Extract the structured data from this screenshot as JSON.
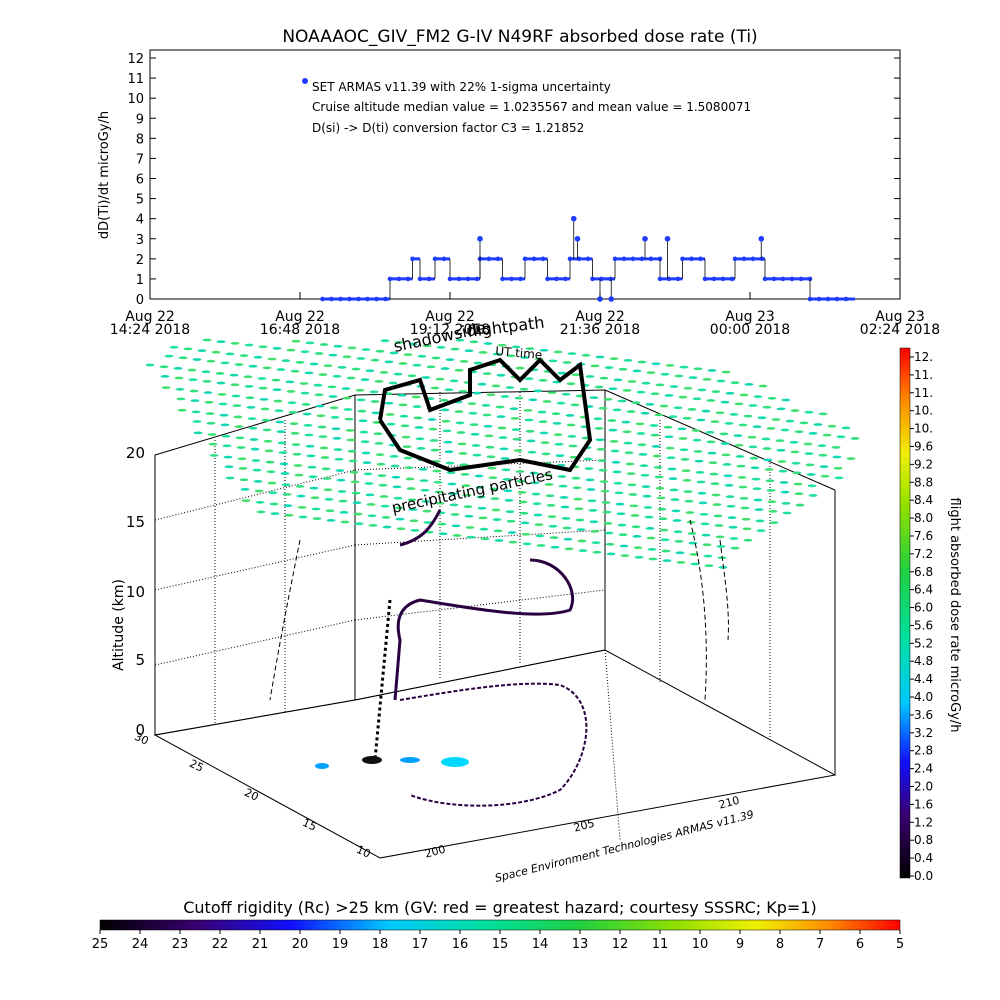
{
  "chart_data": [
    {
      "type": "line",
      "title": "NOAAAOC_GIV_FM2 G-IV    N49RF  absorbed dose rate (Ti)",
      "ylabel": "dD(Ti)/dt microGy/h",
      "ylim": [
        0,
        12
      ],
      "yticks": [
        "0",
        "1",
        "2",
        "3",
        "4",
        "5",
        "6",
        "7",
        "8",
        "9",
        "10",
        "11",
        "12"
      ],
      "xticks": [
        {
          "date": "Aug 22",
          "time": "14:24 2018"
        },
        {
          "date": "Aug 22",
          "time": "16:48 2018"
        },
        {
          "date": "Aug 22",
          "time": "19:12 2018"
        },
        {
          "date": "Aug 22",
          "time": "21:36 2018"
        },
        {
          "date": "Aug 23",
          "time": "00:00 2018"
        },
        {
          "date": "Aug 23",
          "time": "02:24 2018"
        }
      ],
      "annotations": [
        "SET ARMAS v11.39 with 22% 1-sigma uncertainty",
        "Cruise altitude median value = 1.0235567 and mean value = 1.5080071",
        "D(si) -> D(ti) conversion factor C3 = 1.21852"
      ],
      "series": [
        {
          "color": "#1e3cff",
          "segments": [
            {
              "x0": 0.23,
              "x1": 0.32,
              "y": 0
            },
            {
              "x0": 0.32,
              "x1": 0.35,
              "y": 1
            },
            {
              "x0": 0.35,
              "x1": 0.36,
              "y": 2
            },
            {
              "x0": 0.36,
              "x1": 0.38,
              "y": 1
            },
            {
              "x0": 0.38,
              "x1": 0.4,
              "y": 2
            },
            {
              "x0": 0.4,
              "x1": 0.44,
              "y": 1
            },
            {
              "x0": 0.44,
              "x1": 0.47,
              "y": 2
            },
            {
              "x0": 0.47,
              "x1": 0.5,
              "y": 1
            },
            {
              "x0": 0.5,
              "x1": 0.53,
              "y": 2
            },
            {
              "x0": 0.53,
              "x1": 0.56,
              "y": 1
            },
            {
              "x0": 0.56,
              "x1": 0.59,
              "y": 2
            },
            {
              "x0": 0.59,
              "x1": 0.62,
              "y": 1
            },
            {
              "x0": 0.62,
              "x1": 0.68,
              "y": 2
            },
            {
              "x0": 0.68,
              "x1": 0.71,
              "y": 1
            },
            {
              "x0": 0.71,
              "x1": 0.74,
              "y": 2
            },
            {
              "x0": 0.74,
              "x1": 0.78,
              "y": 1
            },
            {
              "x0": 0.78,
              "x1": 0.82,
              "y": 2
            },
            {
              "x0": 0.82,
              "x1": 0.88,
              "y": 1
            },
            {
              "x0": 0.88,
              "x1": 0.94,
              "y": 0
            }
          ],
          "spikes": [
            {
              "x": 0.44,
              "y": 3
            },
            {
              "x": 0.565,
              "y": 4
            },
            {
              "x": 0.57,
              "y": 3
            },
            {
              "x": 0.6,
              "y": 0
            },
            {
              "x": 0.615,
              "y": 0
            },
            {
              "x": 0.66,
              "y": 3
            },
            {
              "x": 0.69,
              "y": 3
            },
            {
              "x": 0.815,
              "y": 3
            }
          ]
        }
      ]
    },
    {
      "type": "scatter",
      "title": "",
      "zlabel": "Altitude (km)",
      "zticks": [
        "0",
        "5",
        "10",
        "15",
        "20"
      ],
      "yticks": [
        "10",
        "15",
        "20",
        "25",
        "30"
      ],
      "xticks": [
        "200",
        "205",
        "210"
      ],
      "annotations": [
        "shadowside",
        "flightpath",
        "UT time",
        "precipitating particles",
        "Space Environment Technologies ARMAS v11.39"
      ],
      "colorbar_right": {
        "label": "flight absorbed dose rate microGy/h",
        "ticks": [
          "12.",
          "11.",
          "11.",
          "10.",
          "10.",
          "9.6",
          "9.2",
          "8.8",
          "8.4",
          "8.0",
          "7.6",
          "7.2",
          "6.8",
          "6.4",
          "6.0",
          "5.6",
          "5.2",
          "4.8",
          "4.4",
          "4.0",
          "3.6",
          "3.2",
          "2.8",
          "2.4",
          "2.0",
          "1.6",
          "1.2",
          "0.8",
          "0.4",
          "0.0"
        ]
      },
      "colorbar_bottom": {
        "label": "Cutoff rigidity (Rc) >25 km (GV: red = greatest hazard; courtesy SSSRC; Kp=1)",
        "ticks": [
          "25",
          "24",
          "23",
          "22",
          "21",
          "20",
          "19",
          "18",
          "17",
          "16",
          "15",
          "14",
          "13",
          "12",
          "11",
          "10",
          "9",
          "8",
          "7",
          "6",
          "5"
        ]
      }
    }
  ]
}
